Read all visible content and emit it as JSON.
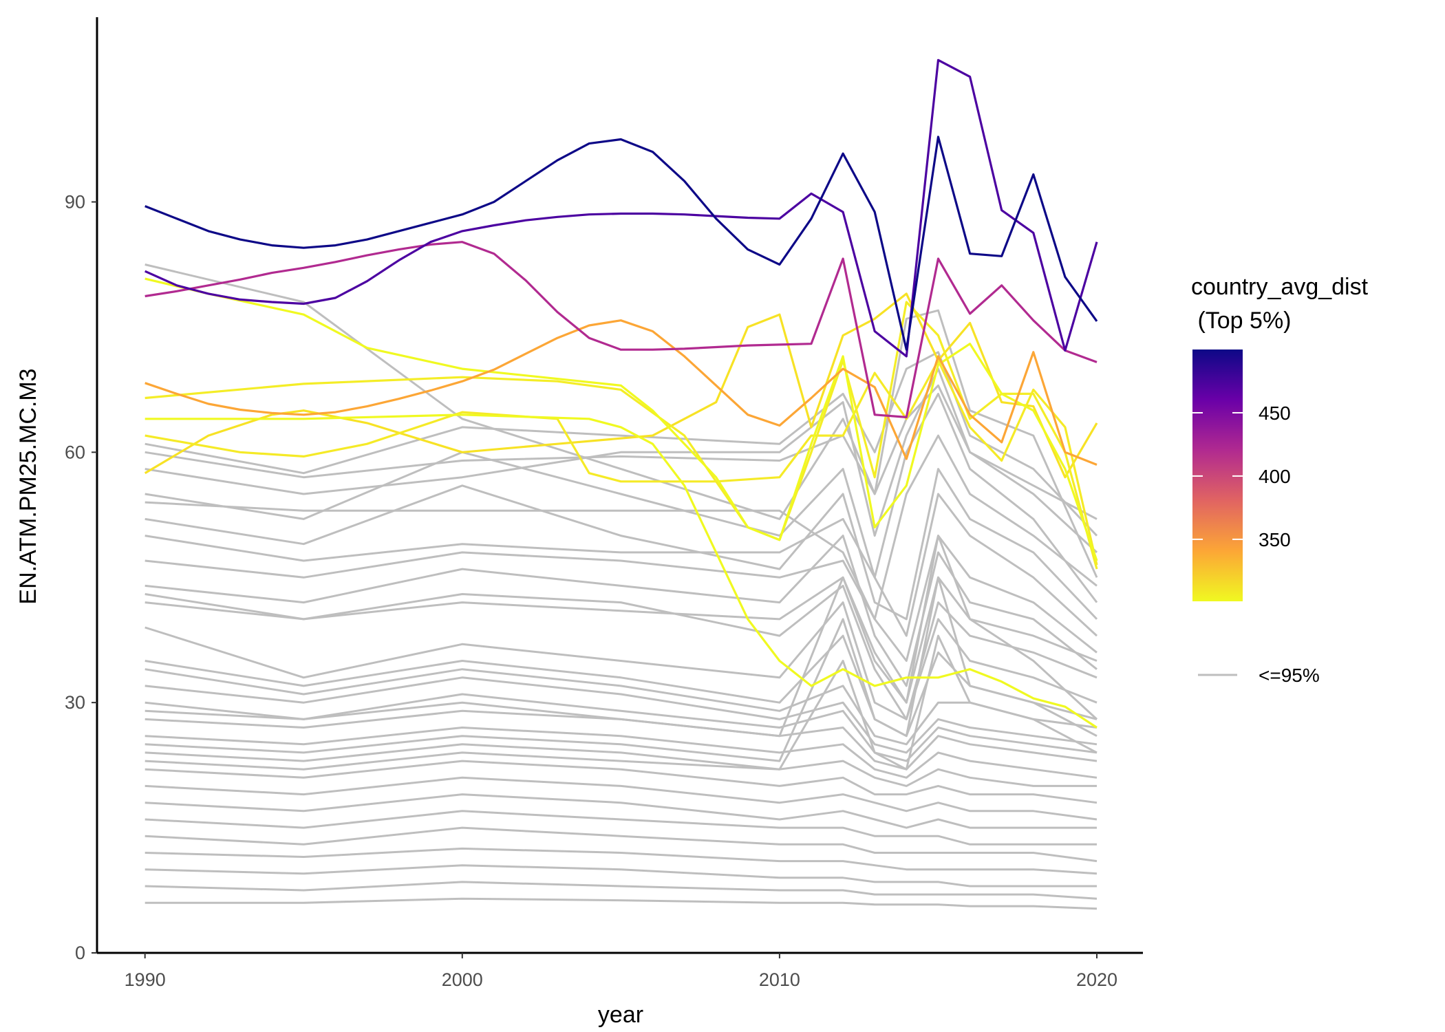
{
  "chart_data": {
    "type": "line",
    "title": "",
    "xlabel": "year",
    "ylabel": "EN.ATM.PM25.MC.M3",
    "xlim": [
      1990,
      2020
    ],
    "ylim": [
      0,
      108
    ],
    "x_ticks": [
      1990,
      2000,
      2010,
      2020
    ],
    "y_ticks": [
      0,
      30,
      60,
      90
    ],
    "grid": false,
    "legend": {
      "placement": "right",
      "title_line1": "country_avg_dist",
      "title_line2": " (Top 5%)",
      "colorbar_range": [
        301,
        500
      ],
      "colorbar_ticks": [
        350,
        400,
        450
      ],
      "colorbar_stops": [
        "#f0f921",
        "#fca636",
        "#e16462",
        "#b12a90",
        "#6a00a8",
        "#0d0887"
      ],
      "gray_label": "<=95%",
      "gray_color": "#bebebe"
    },
    "highlighted_series": [
      {
        "color": "#0d0887",
        "x": [
          1990,
          1991,
          1992,
          1993,
          1994,
          1995,
          1996,
          1997,
          1998,
          1999,
          2000,
          2001,
          2002,
          2003,
          2004,
          2005,
          2006,
          2007,
          2008,
          2009,
          2010,
          2011,
          2012,
          2013,
          2014,
          2015,
          2016,
          2017,
          2018,
          2019,
          2020
        ],
        "values": [
          89.5,
          88,
          86.5,
          85.5,
          84.8,
          84.5,
          84.8,
          85.5,
          86.5,
          87.5,
          88.5,
          90,
          92.5,
          95,
          97,
          97.5,
          96,
          92.5,
          88,
          84.3,
          82.5,
          88,
          95.8,
          88.8,
          72.3,
          97.8,
          83.8,
          83.5,
          93.3,
          81,
          75.7
        ]
      },
      {
        "color": "#4c02a1",
        "x": [
          1990,
          1991,
          1992,
          1993,
          1994,
          1995,
          1996,
          1997,
          1998,
          1999,
          2000,
          2001,
          2002,
          2003,
          2004,
          2005,
          2006,
          2007,
          2008,
          2009,
          2010,
          2011,
          2012,
          2013,
          2014,
          2015,
          2016,
          2017,
          2018,
          2019,
          2020
        ],
        "values": [
          81.7,
          80,
          79,
          78.3,
          78,
          77.8,
          78.5,
          80.5,
          83,
          85.2,
          86.5,
          87.2,
          87.8,
          88.2,
          88.5,
          88.6,
          88.6,
          88.5,
          88.3,
          88.1,
          88,
          91,
          88.8,
          74.5,
          71.5,
          107,
          105,
          89,
          86.3,
          72.2,
          85.2
        ]
      },
      {
        "color": "#b12a90",
        "x": [
          1990,
          1991,
          1992,
          1993,
          1994,
          1995,
          1996,
          1997,
          1998,
          1999,
          2000,
          2001,
          2002,
          2003,
          2004,
          2005,
          2006,
          2007,
          2008,
          2009,
          2010,
          2011,
          2012,
          2013,
          2014,
          2015,
          2016,
          2017,
          2018,
          2019,
          2020
        ],
        "values": [
          78.7,
          79.3,
          80,
          80.7,
          81.5,
          82.1,
          82.8,
          83.6,
          84.3,
          84.9,
          85.2,
          83.8,
          80.6,
          76.8,
          73.7,
          72.3,
          72.3,
          72.4,
          72.6,
          72.8,
          72.9,
          73,
          83.2,
          64.5,
          64.2,
          83.2,
          76.6,
          80,
          75.8,
          72.2,
          70.8
        ]
      },
      {
        "color": "#fca636",
        "x": [
          1990,
          1991,
          1992,
          1993,
          1994,
          1995,
          1996,
          1997,
          1998,
          1999,
          2000,
          2001,
          2002,
          2003,
          2004,
          2005,
          2006,
          2007,
          2008,
          2009,
          2010,
          2011,
          2012,
          2013,
          2014,
          2015,
          2016,
          2017,
          2018,
          2019,
          2020
        ],
        "values": [
          68.3,
          67,
          65.8,
          65.1,
          64.7,
          64.5,
          64.8,
          65.5,
          66.4,
          67.4,
          68.5,
          69.9,
          71.8,
          73.7,
          75.2,
          75.8,
          74.5,
          71.5,
          68,
          64.5,
          63.2,
          66.5,
          70,
          67.8,
          59.2,
          71.5,
          64.5,
          61.2,
          72,
          60,
          58.5
        ]
      },
      {
        "color": "#f0f921",
        "x": [
          1990,
          1992,
          1995,
          1997,
          2000,
          2005,
          2006,
          2008,
          2009,
          2010,
          2011,
          2012,
          2013,
          2014,
          2015,
          2016,
          2017,
          2018,
          2019,
          2020
        ],
        "values": [
          80.8,
          79,
          76.5,
          72.5,
          70,
          68,
          65,
          57,
          51,
          49.5,
          61,
          71.5,
          51,
          56,
          70.5,
          73,
          67,
          65,
          58,
          47
        ]
      },
      {
        "color": "#f4ed27",
        "x": [
          1990,
          1995,
          2000,
          2003,
          2005,
          2007,
          2009,
          2010,
          2011,
          2012,
          2013,
          2014,
          2015,
          2016,
          2017,
          2018,
          2019,
          2020
        ],
        "values": [
          66.5,
          68.2,
          69,
          68.5,
          67.5,
          62,
          51,
          49.5,
          60,
          71,
          57,
          78,
          74,
          64,
          67,
          67,
          60,
          46
        ]
      },
      {
        "color": "#f0f921",
        "x": [
          1990,
          1995,
          2000,
          2004,
          2005,
          2006,
          2007,
          2008,
          2009,
          2010,
          2011,
          2012,
          2013,
          2014,
          2015,
          2016,
          2017,
          2018,
          2019,
          2020
        ],
        "values": [
          64,
          64,
          64.5,
          64,
          63,
          61,
          56,
          48,
          40,
          35,
          32,
          34,
          32,
          33,
          33,
          34,
          32.5,
          30.5,
          29.5,
          27
        ]
      },
      {
        "color": "#f5ea27",
        "x": [
          1990,
          1993,
          1995,
          1997,
          2000,
          2003,
          2004,
          2005,
          2008,
          2010,
          2011,
          2012,
          2013,
          2014,
          2015,
          2016,
          2017,
          2018,
          2019,
          2020
        ],
        "values": [
          62,
          60,
          59.5,
          61,
          64.8,
          64,
          57.5,
          56.5,
          56.5,
          57,
          62,
          62,
          69.5,
          64,
          71,
          63,
          59,
          67.5,
          63,
          46.5
        ]
      },
      {
        "color": "#f7e225",
        "x": [
          1990,
          1992,
          1994,
          1995,
          1997,
          2000,
          2003,
          2006,
          2008,
          2009,
          2010,
          2011,
          2012,
          2013,
          2014,
          2015,
          2016,
          2017,
          2018,
          2019,
          2020
        ],
        "values": [
          57.5,
          62,
          64.5,
          65,
          63.5,
          60,
          61,
          62,
          66,
          75,
          76.5,
          63,
          74,
          76,
          79,
          71,
          75.5,
          66,
          65.5,
          57,
          63.5
        ]
      }
    ],
    "other_series_x": [
      1990,
      1995,
      2000,
      2005,
      2010,
      2012,
      2013,
      2014,
      2015,
      2016,
      2018,
      2020
    ],
    "other_series": [
      [
        82.5,
        78,
        64,
        58,
        52,
        64,
        55,
        76,
        77,
        65,
        62,
        45
      ],
      [
        61,
        57.5,
        63,
        62,
        61,
        67,
        60,
        70,
        72,
        62,
        58,
        50
      ],
      [
        60,
        57,
        59,
        59.5,
        59,
        62,
        55,
        64,
        68,
        60,
        56,
        52
      ],
      [
        58,
        55,
        57,
        60,
        60,
        66,
        50,
        62,
        70,
        60,
        55,
        48
      ],
      [
        55,
        52,
        60,
        55,
        50,
        58,
        45,
        60,
        67,
        58,
        52,
        42
      ],
      [
        54,
        53,
        53,
        53,
        53,
        48,
        40,
        55,
        62,
        55,
        50,
        44
      ],
      [
        52,
        49,
        56,
        50,
        46,
        55,
        42,
        40,
        58,
        52,
        48,
        40
      ],
      [
        50,
        47,
        49,
        48,
        48,
        52,
        45,
        38,
        55,
        50,
        45,
        38
      ],
      [
        47,
        45,
        48,
        47,
        45,
        47,
        40,
        35,
        50,
        45,
        42,
        36
      ],
      [
        44,
        42,
        46,
        44,
        42,
        50,
        38,
        32,
        48,
        42,
        40,
        34
      ],
      [
        43,
        40,
        42,
        41,
        40,
        45,
        36,
        30,
        45,
        40,
        38,
        35
      ],
      [
        42,
        40,
        43,
        42,
        38,
        44,
        34,
        28,
        42,
        38,
        36,
        33
      ],
      [
        39,
        33,
        37,
        35,
        33,
        42,
        30,
        28,
        40,
        35,
        33,
        30
      ],
      [
        35,
        32,
        35,
        33,
        30,
        38,
        28,
        26,
        36,
        32,
        30,
        28
      ],
      [
        34,
        31,
        34,
        32,
        29,
        32,
        26,
        25,
        30,
        30,
        28,
        27
      ],
      [
        32,
        30,
        33,
        31,
        28,
        30,
        25,
        24,
        28,
        27,
        26,
        25
      ],
      [
        30,
        28,
        31,
        29,
        27,
        29,
        24,
        23,
        27,
        26,
        25,
        24
      ],
      [
        29,
        28,
        30,
        28,
        26,
        45,
        35,
        30,
        50,
        40,
        35,
        28
      ],
      [
        28,
        27,
        29,
        28,
        26,
        27,
        23,
        22,
        26,
        25,
        24,
        23
      ],
      [
        26,
        25,
        27,
        26,
        24,
        25,
        22,
        21,
        24,
        23,
        22,
        21
      ],
      [
        25,
        24,
        26,
        25,
        23,
        40,
        28,
        26,
        45,
        32,
        30,
        26
      ],
      [
        24,
        23,
        25,
        24,
        22,
        23,
        21,
        20,
        22,
        21,
        20,
        20
      ],
      [
        23,
        22,
        24,
        23,
        22,
        35,
        24,
        22,
        38,
        30,
        28,
        24
      ],
      [
        22,
        21,
        23,
        22,
        20,
        21,
        19,
        19,
        20,
        19,
        19,
        18
      ],
      [
        20,
        19,
        21,
        20,
        18,
        19,
        18,
        17,
        18,
        17,
        17,
        16
      ],
      [
        18,
        17,
        19,
        18,
        16,
        17,
        16,
        15,
        16,
        15,
        15,
        15
      ],
      [
        16,
        15,
        17,
        16,
        15,
        15,
        14,
        14,
        14,
        13,
        13,
        13
      ],
      [
        14,
        13,
        15,
        14,
        13,
        13,
        12,
        12,
        12,
        12,
        12,
        11
      ],
      [
        12,
        11.5,
        12.5,
        12,
        11,
        11,
        10.5,
        10,
        10,
        10,
        10,
        9.5
      ],
      [
        10,
        9.5,
        10.5,
        10,
        9,
        9,
        8.5,
        8.5,
        8.5,
        8,
        8,
        8
      ],
      [
        8,
        7.5,
        8.5,
        8,
        7.5,
        7.5,
        7,
        7,
        7,
        7,
        7,
        6.5
      ],
      [
        6,
        6,
        6.5,
        6.3,
        6,
        6,
        5.8,
        5.8,
        5.8,
        5.6,
        5.6,
        5.3
      ]
    ]
  }
}
